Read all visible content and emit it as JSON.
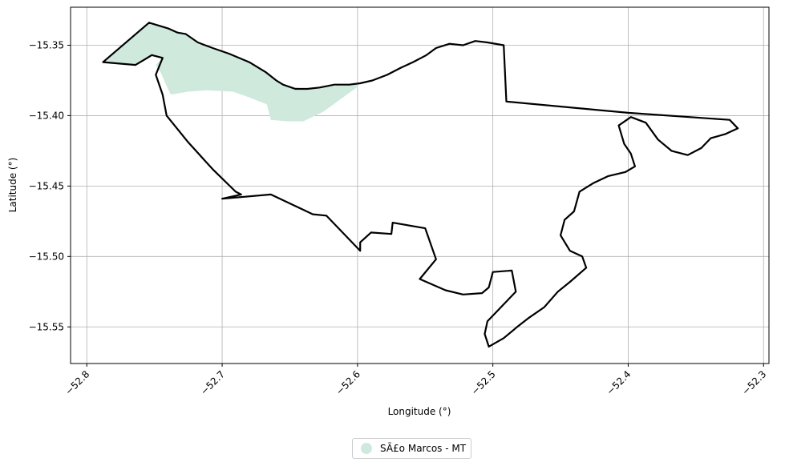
{
  "chart_data": {
    "type": "map",
    "x_label": "Longitude (°)",
    "y_label": "Latitude (°)",
    "x_range": [
      -52.812,
      -52.296
    ],
    "y_range": [
      -15.576,
      -15.323
    ],
    "x_ticks": [
      {
        "value": -52.8,
        "label": "−52.8"
      },
      {
        "value": -52.7,
        "label": "−52.7"
      },
      {
        "value": -52.6,
        "label": "−52.6"
      },
      {
        "value": -52.5,
        "label": "−52.5"
      },
      {
        "value": -52.4,
        "label": "−52.4"
      },
      {
        "value": -52.3,
        "label": "−52.3"
      }
    ],
    "y_ticks": [
      {
        "value": -15.35,
        "label": "−15.35"
      },
      {
        "value": -15.4,
        "label": "−15.40"
      },
      {
        "value": -15.45,
        "label": "−15.45"
      },
      {
        "value": -15.5,
        "label": "−15.50"
      },
      {
        "value": -15.55,
        "label": "−15.55"
      }
    ],
    "grid": true,
    "legend": {
      "position": "bottom-center",
      "label": "SÃ£o Marcos - MT",
      "color": "#cfeadd"
    },
    "highlight_area": {
      "color": "#cfeadd",
      "coordinates": [
        [
          -52.788,
          -15.362
        ],
        [
          -52.754,
          -15.334
        ],
        [
          -52.74,
          -15.338
        ],
        [
          -52.728,
          -15.342
        ],
        [
          -52.718,
          -15.349
        ],
        [
          -52.707,
          -15.353
        ],
        [
          -52.695,
          -15.356
        ],
        [
          -52.68,
          -15.362
        ],
        [
          -52.668,
          -15.369
        ],
        [
          -52.655,
          -15.378
        ],
        [
          -52.64,
          -15.381
        ],
        [
          -52.625,
          -15.38
        ],
        [
          -52.611,
          -15.378
        ],
        [
          -52.598,
          -15.377
        ],
        [
          -52.602,
          -15.381
        ],
        [
          -52.612,
          -15.388
        ],
        [
          -52.625,
          -15.397
        ],
        [
          -52.64,
          -15.404
        ],
        [
          -52.652,
          -15.404
        ],
        [
          -52.664,
          -15.403
        ],
        [
          -52.667,
          -15.392
        ],
        [
          -52.68,
          -15.387
        ],
        [
          -52.692,
          -15.383
        ],
        [
          -52.712,
          -15.382
        ],
        [
          -52.725,
          -15.383
        ],
        [
          -52.738,
          -15.385
        ],
        [
          -52.742,
          -15.377
        ],
        [
          -52.745,
          -15.37
        ],
        [
          -52.749,
          -15.364
        ],
        [
          -52.744,
          -15.359
        ],
        [
          -52.752,
          -15.357
        ],
        [
          -52.757,
          -15.36
        ],
        [
          -52.764,
          -15.364
        ],
        [
          -52.788,
          -15.362
        ]
      ]
    },
    "boundary": {
      "color": "#000000",
      "coordinates": [
        [
          -52.788,
          -15.362
        ],
        [
          -52.754,
          -15.334
        ],
        [
          -52.74,
          -15.338
        ],
        [
          -52.733,
          -15.341
        ],
        [
          -52.727,
          -15.342
        ],
        [
          -52.718,
          -15.348
        ],
        [
          -52.707,
          -15.352
        ],
        [
          -52.695,
          -15.356
        ],
        [
          -52.68,
          -15.362
        ],
        [
          -52.668,
          -15.369
        ],
        [
          -52.66,
          -15.375
        ],
        [
          -52.655,
          -15.378
        ],
        [
          -52.646,
          -15.381
        ],
        [
          -52.637,
          -15.381
        ],
        [
          -52.628,
          -15.38
        ],
        [
          -52.617,
          -15.378
        ],
        [
          -52.606,
          -15.378
        ],
        [
          -52.598,
          -15.377
        ],
        [
          -52.589,
          -15.375
        ],
        [
          -52.578,
          -15.371
        ],
        [
          -52.568,
          -15.366
        ],
        [
          -52.559,
          -15.362
        ],
        [
          -52.549,
          -15.357
        ],
        [
          -52.542,
          -15.352
        ],
        [
          -52.532,
          -15.349
        ],
        [
          -52.522,
          -15.35
        ],
        [
          -52.513,
          -15.347
        ],
        [
          -52.504,
          -15.348
        ],
        [
          -52.492,
          -15.35
        ],
        [
          -52.49,
          -15.39
        ],
        [
          -52.4,
          -15.398
        ],
        [
          -52.325,
          -15.403
        ],
        [
          -52.319,
          -15.409
        ],
        [
          -52.328,
          -15.413
        ],
        [
          -52.339,
          -15.416
        ],
        [
          -52.346,
          -15.423
        ],
        [
          -52.356,
          -15.428
        ],
        [
          -52.368,
          -15.425
        ],
        [
          -52.378,
          -15.417
        ],
        [
          -52.387,
          -15.405
        ],
        [
          -52.398,
          -15.401
        ],
        [
          -52.407,
          -15.407
        ],
        [
          -52.403,
          -15.42
        ],
        [
          -52.398,
          -15.427
        ],
        [
          -52.395,
          -15.436
        ],
        [
          -52.402,
          -15.44
        ],
        [
          -52.415,
          -15.443
        ],
        [
          -52.426,
          -15.448
        ],
        [
          -52.436,
          -15.454
        ],
        [
          -52.44,
          -15.468
        ],
        [
          -52.447,
          -15.474
        ],
        [
          -52.45,
          -15.485
        ],
        [
          -52.443,
          -15.496
        ],
        [
          -52.434,
          -15.5
        ],
        [
          -52.431,
          -15.508
        ],
        [
          -52.443,
          -15.518
        ],
        [
          -52.452,
          -15.525
        ],
        [
          -52.462,
          -15.536
        ],
        [
          -52.474,
          -15.544
        ],
        [
          -52.482,
          -15.55
        ],
        [
          -52.492,
          -15.558
        ],
        [
          -52.503,
          -15.564
        ],
        [
          -52.506,
          -15.555
        ],
        [
          -52.504,
          -15.546
        ],
        [
          -52.494,
          -15.536
        ],
        [
          -52.483,
          -15.525
        ],
        [
          -52.486,
          -15.51
        ],
        [
          -52.5,
          -15.511
        ],
        [
          -52.503,
          -15.522
        ],
        [
          -52.508,
          -15.526
        ],
        [
          -52.522,
          -15.527
        ],
        [
          -52.535,
          -15.524
        ],
        [
          -52.554,
          -15.516
        ],
        [
          -52.542,
          -15.502
        ],
        [
          -52.55,
          -15.48
        ],
        [
          -52.574,
          -15.476
        ],
        [
          -52.575,
          -15.484
        ],
        [
          -52.59,
          -15.483
        ],
        [
          -52.598,
          -15.49
        ],
        [
          -52.598,
          -15.496
        ],
        [
          -52.623,
          -15.471
        ],
        [
          -52.633,
          -15.47
        ],
        [
          -52.664,
          -15.456
        ],
        [
          -52.7,
          -15.459
        ],
        [
          -52.686,
          -15.456
        ],
        [
          -52.69,
          -15.454
        ],
        [
          -52.707,
          -15.438
        ],
        [
          -52.725,
          -15.419
        ],
        [
          -52.741,
          -15.4
        ],
        [
          -52.744,
          -15.385
        ],
        [
          -52.749,
          -15.371
        ],
        [
          -52.744,
          -15.359
        ],
        [
          -52.752,
          -15.357
        ],
        [
          -52.757,
          -15.36
        ],
        [
          -52.764,
          -15.364
        ],
        [
          -52.788,
          -15.362
        ]
      ]
    }
  }
}
